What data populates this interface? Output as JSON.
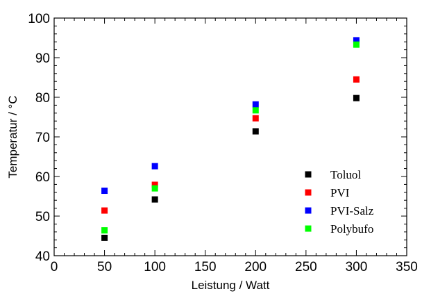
{
  "chart_data": {
    "type": "scatter",
    "xlabel": "Leistung / Watt",
    "ylabel": "Temperatur / °C",
    "xlim": [
      0,
      350
    ],
    "ylim": [
      40,
      100
    ],
    "x_ticks": [
      0,
      50,
      100,
      150,
      200,
      250,
      300,
      350
    ],
    "y_ticks": [
      40,
      50,
      60,
      70,
      80,
      90,
      100
    ],
    "grid": false,
    "legend_position": "bottom-right",
    "series": [
      {
        "name": "Toluol",
        "color": "#000000",
        "x": [
          50,
          100,
          200,
          300
        ],
        "y": [
          44.5,
          54.2,
          71.4,
          79.8
        ]
      },
      {
        "name": "PVI",
        "color": "#ff0000",
        "x": [
          50,
          100,
          200,
          300
        ],
        "y": [
          51.4,
          57.9,
          74.7,
          84.5
        ]
      },
      {
        "name": "PVI-Salz",
        "color": "#0000ff",
        "x": [
          50,
          100,
          200,
          300
        ],
        "y": [
          56.4,
          62.6,
          78.2,
          94.4
        ]
      },
      {
        "name": "Polybufo",
        "color": "#00ff00",
        "x": [
          50,
          100,
          200,
          300
        ],
        "y": [
          46.4,
          57.0,
          76.7,
          93.3
        ]
      }
    ]
  }
}
